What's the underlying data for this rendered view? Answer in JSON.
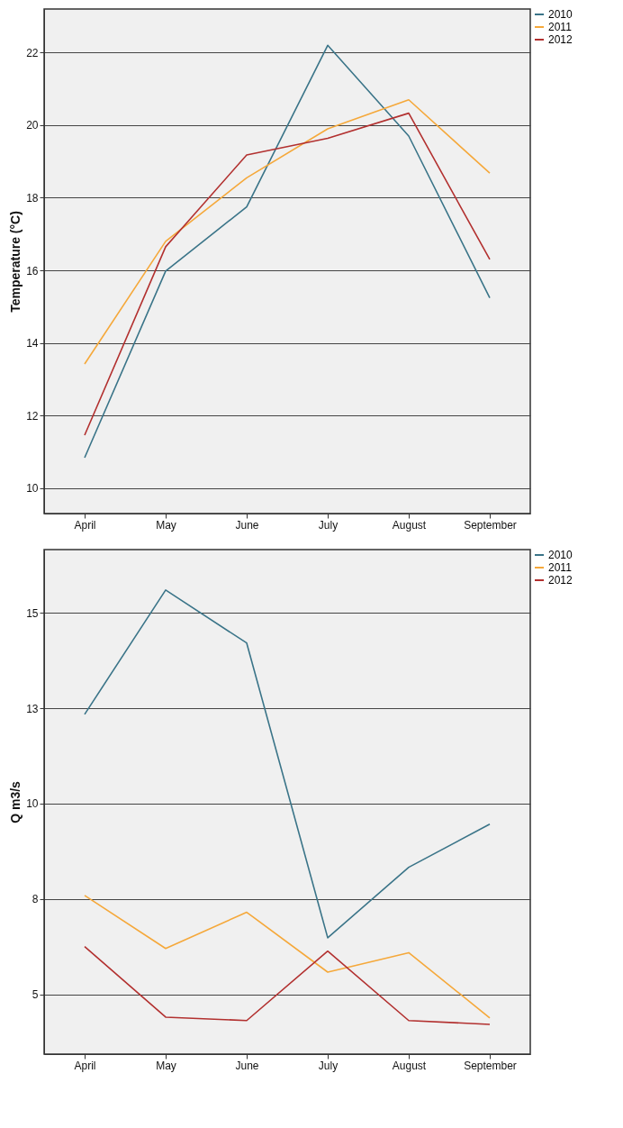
{
  "chart_data": [
    {
      "type": "line",
      "categories": [
        "April",
        "May",
        "June",
        "July",
        "August",
        "September"
      ],
      "ylabel": "Temperature (°C)",
      "ylim": [
        9.3,
        23.2
      ],
      "yticks": [
        10,
        12,
        14,
        16,
        18,
        20,
        22
      ],
      "grid": "y",
      "legend": "top right",
      "line_style": "solid",
      "series": [
        {
          "name": "2010",
          "color": "#3a7488",
          "values": [
            10.84,
            15.98,
            17.75,
            22.2,
            19.7,
            15.24
          ]
        },
        {
          "name": "2011",
          "color": "#f5a83a",
          "values": [
            13.42,
            16.8,
            18.55,
            19.9,
            20.7,
            18.68
          ]
        },
        {
          "name": "2012",
          "color": "#b2302f",
          "values": [
            11.46,
            16.65,
            19.18,
            19.64,
            20.33,
            16.3
          ]
        }
      ]
    },
    {
      "type": "line",
      "categories": [
        "April",
        "May",
        "June",
        "July",
        "August",
        "September"
      ],
      "ylabel": "Q m3/s",
      "ylim": [
        3.43,
        16.66
      ],
      "yticks": [
        5,
        {
          "value": 7.5,
          "label": "8"
        },
        10,
        {
          "value": 12.5,
          "label": "13"
        },
        15
      ],
      "grid": "y",
      "legend": "top right",
      "line_style": "solid",
      "series": [
        {
          "name": "2010",
          "color": "#3a7488",
          "values": [
            12.34,
            15.6,
            14.21,
            6.48,
            8.33,
            9.46
          ]
        },
        {
          "name": "2011",
          "color": "#f5a83a",
          "values": [
            7.59,
            6.2,
            7.15,
            5.58,
            6.09,
            4.38
          ]
        },
        {
          "name": "2012",
          "color": "#b2302f",
          "values": [
            6.25,
            4.4,
            4.31,
            6.13,
            4.31,
            4.21
          ]
        }
      ]
    }
  ]
}
